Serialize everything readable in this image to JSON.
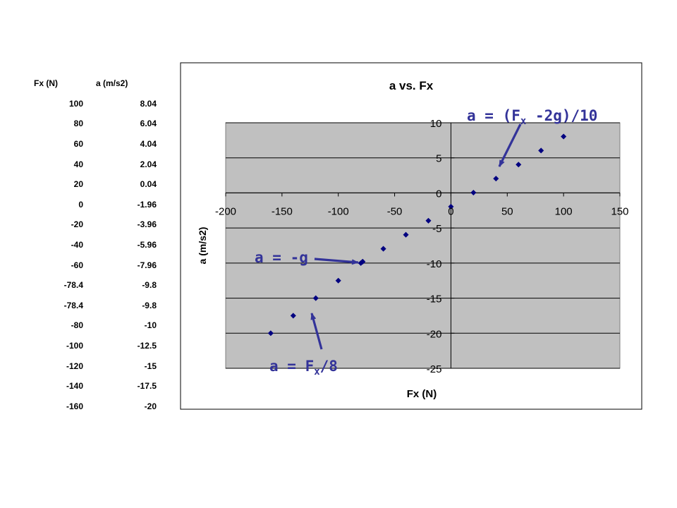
{
  "table": {
    "headers": [
      "Fx (N)",
      "a (m/s2)"
    ],
    "rows": [
      [
        "100",
        "8.04"
      ],
      [
        "80",
        "6.04"
      ],
      [
        "60",
        "4.04"
      ],
      [
        "40",
        "2.04"
      ],
      [
        "20",
        "0.04"
      ],
      [
        "0",
        "-1.96"
      ],
      [
        "-20",
        "-3.96"
      ],
      [
        "-40",
        "-5.96"
      ],
      [
        "-60",
        "-7.96"
      ],
      [
        "-78.4",
        "-9.8"
      ],
      [
        "-78.4",
        "-9.8"
      ],
      [
        "-80",
        "-10"
      ],
      [
        "-100",
        "-12.5"
      ],
      [
        "-120",
        "-15"
      ],
      [
        "-140",
        "-17.5"
      ],
      [
        "-160",
        "-20"
      ]
    ]
  },
  "chart_data": {
    "type": "scatter",
    "title": "a vs. Fx",
    "xlabel": "Fx (N)",
    "ylabel": "a (m/s2)",
    "xlim": [
      -200,
      150
    ],
    "ylim": [
      -25,
      10
    ],
    "xticks": [
      -200,
      -150,
      -100,
      -50,
      0,
      50,
      100,
      150
    ],
    "yticks": [
      10,
      5,
      0,
      -5,
      -10,
      -15,
      -20,
      -25
    ],
    "grid": true,
    "marker_color": "#000080",
    "plot_bg": "#c0c0c0",
    "series": [
      {
        "x": [
          100,
          80,
          60,
          40,
          20,
          0,
          -20,
          -40,
          -60,
          -78.4,
          -78.4,
          -80,
          -100,
          -120,
          -140,
          -160
        ],
        "y": [
          8.04,
          6.04,
          4.04,
          2.04,
          0.04,
          -1.96,
          -3.96,
          -5.96,
          -7.96,
          -9.8,
          -9.8,
          -10,
          -12.5,
          -15,
          -17.5,
          -20
        ]
      }
    ],
    "annotations": [
      {
        "id": "upper",
        "parts": [
          "a = (F",
          "x",
          " -2g)/10"
        ],
        "target": [
          40,
          2.04
        ]
      },
      {
        "id": "middle",
        "parts": [
          "a = -g"
        ],
        "target": [
          -78.4,
          -9.8
        ]
      },
      {
        "id": "lower",
        "parts": [
          "a = F",
          "x",
          "/8"
        ],
        "target": [
          -120,
          -15
        ]
      }
    ],
    "annotation_color": "#333399"
  }
}
